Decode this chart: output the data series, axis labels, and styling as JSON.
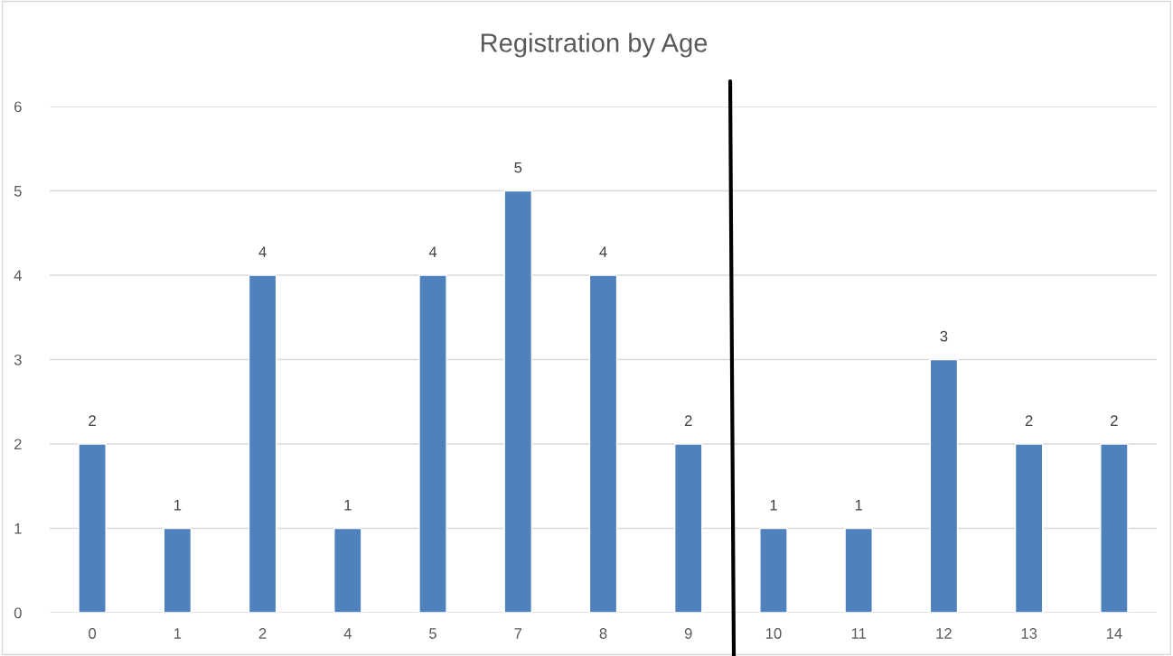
{
  "chart_data": {
    "type": "bar",
    "title": "Registration by Age",
    "categories": [
      "0",
      "1",
      "2",
      "4",
      "5",
      "7",
      "8",
      "9",
      "10",
      "11",
      "12",
      "13",
      "14"
    ],
    "values": [
      2,
      1,
      4,
      1,
      4,
      5,
      4,
      2,
      1,
      1,
      3,
      2,
      2
    ],
    "color": "#4f81bd",
    "ylim": [
      0,
      6
    ],
    "yticks": [
      0,
      1,
      2,
      3,
      4,
      5,
      6
    ],
    "grid": "y",
    "data_labels": true
  }
}
